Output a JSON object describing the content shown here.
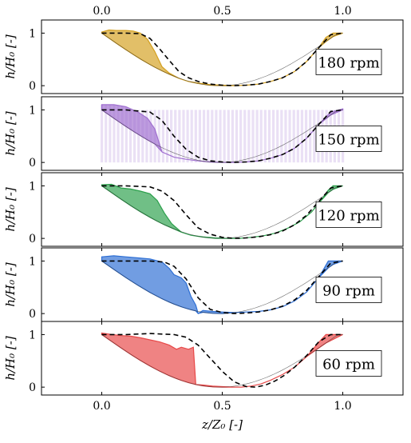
{
  "chart_data": {
    "type": "area",
    "xlabel": "z/Z₀ [-]",
    "ylabel": "h/H₀ [-]",
    "xlim": [
      -0.25,
      1.25
    ],
    "ylim": [
      -0.15,
      1.25
    ],
    "x_ticks": [
      "0.0",
      "0.5",
      "1.0"
    ],
    "x_tick_values": [
      0.0,
      0.5,
      1.0
    ],
    "y_ticks": [
      "0",
      "1"
    ],
    "y_tick_values": [
      0,
      1
    ],
    "panels": [
      {
        "label": "180 rpm",
        "color": "#d4a020",
        "stripes": false,
        "measured": [
          [
            0.0,
            1.02
          ],
          [
            0.03,
            1.06
          ],
          [
            0.06,
            1.05
          ],
          [
            0.1,
            1.05
          ],
          [
            0.13,
            1.04
          ],
          [
            0.16,
            1.0
          ],
          [
            0.19,
            0.88
          ],
          [
            0.22,
            0.65
          ],
          [
            0.25,
            0.36
          ],
          [
            0.28,
            0.24
          ],
          [
            0.32,
            0.14
          ],
          [
            0.36,
            0.08
          ],
          [
            0.4,
            0.05
          ],
          [
            0.45,
            0.02
          ],
          [
            0.5,
            0.01
          ],
          [
            0.55,
            0.0
          ],
          [
            0.6,
            0.01
          ],
          [
            0.65,
            0.03
          ],
          [
            0.7,
            0.08
          ],
          [
            0.75,
            0.15
          ],
          [
            0.8,
            0.27
          ],
          [
            0.85,
            0.46
          ],
          [
            0.9,
            0.72
          ],
          [
            0.93,
            0.92
          ],
          [
            0.96,
            1.0
          ],
          [
            1.0,
            1.0
          ]
        ],
        "model": [
          [
            0.0,
            1.0
          ],
          [
            0.1,
            1.0
          ],
          [
            0.16,
            0.99
          ],
          [
            0.2,
            0.9
          ],
          [
            0.24,
            0.7
          ],
          [
            0.28,
            0.48
          ],
          [
            0.32,
            0.27
          ],
          [
            0.36,
            0.15
          ],
          [
            0.4,
            0.08
          ],
          [
            0.45,
            0.03
          ],
          [
            0.5,
            0.01
          ],
          [
            0.55,
            0.0
          ],
          [
            0.6,
            0.01
          ],
          [
            0.65,
            0.03
          ],
          [
            0.7,
            0.08
          ],
          [
            0.75,
            0.15
          ],
          [
            0.8,
            0.27
          ],
          [
            0.85,
            0.46
          ],
          [
            0.9,
            0.72
          ],
          [
            0.95,
            0.97
          ],
          [
            1.0,
            1.0
          ]
        ]
      },
      {
        "label": "150 rpm",
        "color": "#a070d0",
        "stripes": true,
        "measured": [
          [
            0.0,
            1.1
          ],
          [
            0.05,
            1.1
          ],
          [
            0.1,
            1.06
          ],
          [
            0.15,
            0.96
          ],
          [
            0.19,
            0.84
          ],
          [
            0.22,
            0.64
          ],
          [
            0.25,
            0.2
          ],
          [
            0.3,
            0.1
          ],
          [
            0.35,
            0.06
          ],
          [
            0.4,
            0.03
          ],
          [
            0.45,
            0.01
          ],
          [
            0.5,
            0.0
          ],
          [
            0.55,
            0.0
          ],
          [
            0.6,
            0.01
          ],
          [
            0.65,
            0.03
          ],
          [
            0.7,
            0.08
          ],
          [
            0.75,
            0.15
          ],
          [
            0.8,
            0.27
          ],
          [
            0.85,
            0.46
          ],
          [
            0.9,
            0.72
          ],
          [
            0.95,
            0.96
          ],
          [
            1.0,
            1.02
          ]
        ],
        "model": [
          [
            0.0,
            1.0
          ],
          [
            0.1,
            1.0
          ],
          [
            0.2,
            0.96
          ],
          [
            0.25,
            0.8
          ],
          [
            0.3,
            0.5
          ],
          [
            0.35,
            0.25
          ],
          [
            0.4,
            0.1
          ],
          [
            0.45,
            0.03
          ],
          [
            0.5,
            0.01
          ],
          [
            0.55,
            0.0
          ],
          [
            0.6,
            0.01
          ],
          [
            0.65,
            0.03
          ],
          [
            0.7,
            0.08
          ],
          [
            0.75,
            0.15
          ],
          [
            0.8,
            0.27
          ],
          [
            0.85,
            0.46
          ],
          [
            0.9,
            0.72
          ],
          [
            0.95,
            0.97
          ],
          [
            1.0,
            1.0
          ]
        ]
      },
      {
        "label": "120 rpm",
        "color": "#2ca04c",
        "stripes": false,
        "measured": [
          [
            0.0,
            1.02
          ],
          [
            0.04,
            1.03
          ],
          [
            0.08,
            0.96
          ],
          [
            0.12,
            0.94
          ],
          [
            0.16,
            0.9
          ],
          [
            0.2,
            0.85
          ],
          [
            0.23,
            0.72
          ],
          [
            0.26,
            0.48
          ],
          [
            0.29,
            0.28
          ],
          [
            0.33,
            0.12
          ],
          [
            0.37,
            0.06
          ],
          [
            0.42,
            0.03
          ],
          [
            0.47,
            0.01
          ],
          [
            0.52,
            0.0
          ],
          [
            0.57,
            0.0
          ],
          [
            0.62,
            0.02
          ],
          [
            0.67,
            0.05
          ],
          [
            0.72,
            0.1
          ],
          [
            0.77,
            0.19
          ],
          [
            0.82,
            0.31
          ],
          [
            0.87,
            0.5
          ],
          [
            0.91,
            0.72
          ],
          [
            0.94,
            0.92
          ],
          [
            0.96,
            1.0
          ],
          [
            1.0,
            1.0
          ]
        ],
        "model": [
          [
            0.0,
            1.0
          ],
          [
            0.1,
            1.0
          ],
          [
            0.2,
            0.98
          ],
          [
            0.25,
            0.9
          ],
          [
            0.3,
            0.72
          ],
          [
            0.35,
            0.45
          ],
          [
            0.4,
            0.2
          ],
          [
            0.45,
            0.08
          ],
          [
            0.5,
            0.02
          ],
          [
            0.55,
            0.0
          ],
          [
            0.6,
            0.01
          ],
          [
            0.65,
            0.03
          ],
          [
            0.7,
            0.07
          ],
          [
            0.75,
            0.14
          ],
          [
            0.8,
            0.26
          ],
          [
            0.85,
            0.44
          ],
          [
            0.9,
            0.7
          ],
          [
            0.95,
            0.96
          ],
          [
            1.0,
            1.0
          ]
        ]
      },
      {
        "label": "90 rpm",
        "color": "#2e6fd4",
        "stripes": false,
        "measured": [
          [
            0.0,
            1.08
          ],
          [
            0.05,
            1.1
          ],
          [
            0.1,
            1.08
          ],
          [
            0.15,
            1.06
          ],
          [
            0.2,
            1.04
          ],
          [
            0.25,
            0.98
          ],
          [
            0.28,
            0.86
          ],
          [
            0.3,
            0.74
          ],
          [
            0.33,
            0.68
          ],
          [
            0.35,
            0.58
          ],
          [
            0.37,
            0.33
          ],
          [
            0.39,
            0.16
          ],
          [
            0.4,
            0.0
          ],
          [
            0.42,
            0.06
          ],
          [
            0.46,
            0.04
          ],
          [
            0.5,
            0.03
          ],
          [
            0.55,
            0.02
          ],
          [
            0.6,
            0.03
          ],
          [
            0.65,
            0.04
          ],
          [
            0.7,
            0.07
          ],
          [
            0.75,
            0.13
          ],
          [
            0.8,
            0.24
          ],
          [
            0.85,
            0.41
          ],
          [
            0.9,
            0.68
          ],
          [
            0.94,
            1.0
          ],
          [
            0.96,
            1.0
          ],
          [
            1.0,
            1.0
          ]
        ],
        "model": [
          [
            0.0,
            1.0
          ],
          [
            0.1,
            1.0
          ],
          [
            0.2,
            1.0
          ],
          [
            0.26,
            0.98
          ],
          [
            0.3,
            0.9
          ],
          [
            0.35,
            0.66
          ],
          [
            0.4,
            0.3
          ],
          [
            0.45,
            0.08
          ],
          [
            0.5,
            0.02
          ],
          [
            0.55,
            0.0
          ],
          [
            0.6,
            0.01
          ],
          [
            0.65,
            0.03
          ],
          [
            0.7,
            0.07
          ],
          [
            0.75,
            0.14
          ],
          [
            0.8,
            0.26
          ],
          [
            0.85,
            0.44
          ],
          [
            0.9,
            0.7
          ],
          [
            0.95,
            0.96
          ],
          [
            1.0,
            1.0
          ]
        ]
      },
      {
        "label": "60 rpm",
        "color": "#e84848",
        "stripes": false,
        "measured": [
          [
            0.0,
            1.03
          ],
          [
            0.03,
            1.01
          ],
          [
            0.08,
            0.98
          ],
          [
            0.12,
            0.97
          ],
          [
            0.16,
            0.94
          ],
          [
            0.2,
            0.9
          ],
          [
            0.24,
            0.86
          ],
          [
            0.28,
            0.8
          ],
          [
            0.31,
            0.72
          ],
          [
            0.33,
            0.76
          ],
          [
            0.36,
            0.72
          ],
          [
            0.38,
            0.76
          ],
          [
            0.39,
            0.05
          ],
          [
            0.42,
            0.04
          ],
          [
            0.46,
            0.02
          ],
          [
            0.5,
            0.01
          ],
          [
            0.55,
            0.0
          ],
          [
            0.58,
            0.0
          ],
          [
            0.62,
            0.02
          ],
          [
            0.66,
            0.06
          ],
          [
            0.7,
            0.13
          ],
          [
            0.75,
            0.24
          ],
          [
            0.8,
            0.38
          ],
          [
            0.85,
            0.58
          ],
          [
            0.9,
            0.85
          ],
          [
            0.93,
            1.0
          ],
          [
            1.0,
            1.0
          ]
        ],
        "model": [
          [
            0.0,
            1.0
          ],
          [
            0.1,
            1.0
          ],
          [
            0.2,
            1.02
          ],
          [
            0.3,
            1.0
          ],
          [
            0.35,
            0.95
          ],
          [
            0.4,
            0.8
          ],
          [
            0.45,
            0.55
          ],
          [
            0.5,
            0.3
          ],
          [
            0.55,
            0.1
          ],
          [
            0.6,
            0.01
          ],
          [
            0.64,
            0.0
          ],
          [
            0.68,
            0.04
          ],
          [
            0.72,
            0.12
          ],
          [
            0.76,
            0.23
          ],
          [
            0.8,
            0.38
          ],
          [
            0.85,
            0.6
          ],
          [
            0.9,
            0.86
          ],
          [
            0.95,
            1.0
          ],
          [
            1.0,
            1.0
          ]
        ]
      }
    ],
    "colors": {
      "model_line": "#000000",
      "frame": "#000000",
      "background": "#ffffff"
    }
  }
}
